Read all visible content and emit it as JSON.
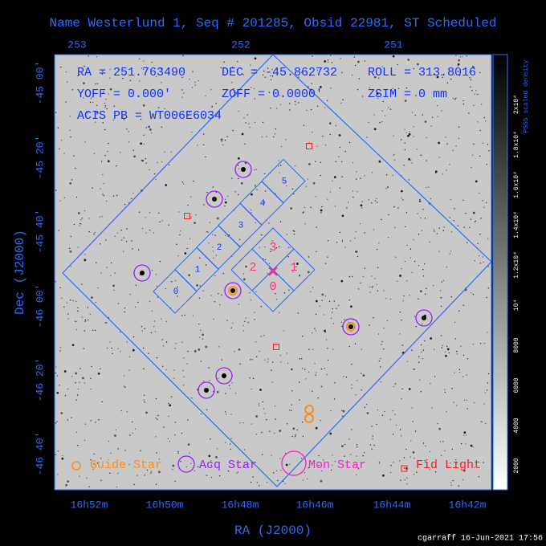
{
  "title": "Name Westerlund 1, Seq # 201285, Obsid 22981, ST Scheduled",
  "info": [
    "RA = 251.763490",
    "DEC = -45.862732",
    "ROLL = 313.8016",
    "YOFF =   0.000'",
    "ZOFF =  0.0000'",
    "ZSIM = 0 mm",
    "ACIS PB = WT006E6034"
  ],
  "top_axis": [
    "253",
    "252",
    "251"
  ],
  "x_axis": {
    "label": "RA (J2000)",
    "ticks": [
      "16h52m",
      "16h50m",
      "16h48m",
      "16h46m",
      "16h44m",
      "16h42m"
    ]
  },
  "y_axis": {
    "label": "Dec (J2000)",
    "ticks": [
      "-45 00'",
      "-45 20'",
      "-45 40'",
      "-46 00'",
      "-46 20'",
      "-46 40'"
    ]
  },
  "colorbar": {
    "label": "PSSS scaled density",
    "ticks": [
      "2000",
      "4000",
      "6000",
      "8000",
      "10⁴",
      "1.2x10⁴",
      "1.4x10⁴",
      "1.6x10⁴",
      "1.8x10⁴",
      "2x10⁴"
    ]
  },
  "acis_s_chips": [
    "0",
    "1",
    "2",
    "3",
    "4",
    "5"
  ],
  "acis_i_chips": [
    "0",
    "1",
    "2",
    "3"
  ],
  "legend": [
    "Guide Star",
    "Acq Star",
    "Mon Star",
    "Fid Light"
  ],
  "footer": "cgarraff 16-Jun-2021 17:56"
}
